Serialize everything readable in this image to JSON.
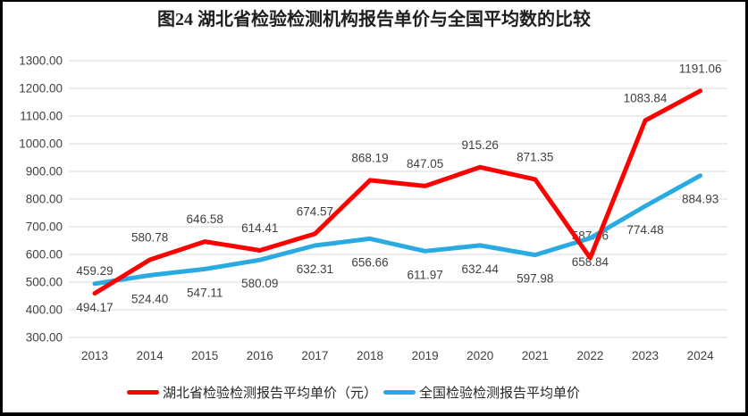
{
  "title": "图24 湖北省检验检测机构报告单价与全国平均数的比较",
  "chart_data": {
    "type": "line",
    "categories": [
      "2013",
      "2014",
      "2015",
      "2016",
      "2017",
      "2018",
      "2019",
      "2020",
      "2021",
      "2022",
      "2023",
      "2024"
    ],
    "series": [
      {
        "id": "hubei",
        "name": "湖北省检验检测报告平均单价（元）",
        "color": "#FF0000",
        "label_position": "above",
        "values": [
          459.29,
          580.78,
          646.58,
          614.41,
          674.57,
          868.19,
          847.05,
          915.26,
          871.35,
          587.46,
          1083.84,
          1191.06
        ]
      },
      {
        "id": "national",
        "name": "全国检验检测报告平均单价",
        "color": "#29ABE2",
        "label_position": "below",
        "values": [
          494.17,
          524.4,
          547.11,
          580.09,
          632.31,
          656.66,
          611.97,
          632.44,
          597.98,
          658.84,
          774.48,
          884.93
        ]
      }
    ],
    "ylim": [
      300,
      1300
    ],
    "ytick_step": 100,
    "value_decimals": 2,
    "grid": true,
    "legend_position": "bottom",
    "colors": {
      "gridline": "#D9D9D9",
      "tick_text": "#404040",
      "data_label": "#404040",
      "title_text": "#1f1f1f",
      "frame_border": "#000000",
      "background": "#FFFFFF"
    }
  }
}
